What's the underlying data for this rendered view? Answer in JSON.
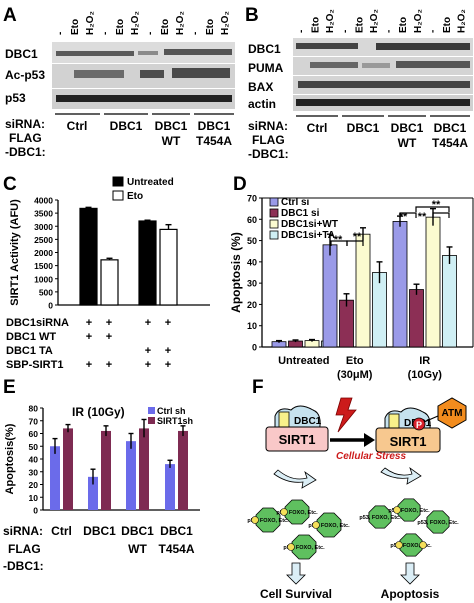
{
  "panels": {
    "A": {
      "letter": "A",
      "lane_marks": [
        "-",
        "Eto",
        "H₂O₂",
        "-",
        "Eto",
        "H₂O₂",
        "-",
        "Eto",
        "H₂O₂",
        "-",
        "Eto",
        "H₂O₂"
      ],
      "bands": [
        "DBC1",
        "Ac-p53",
        "p53"
      ],
      "row_labels": [
        "siRNA:",
        "FLAG",
        "-DBC1:"
      ],
      "groups": [
        {
          "line1": "Ctrl",
          "line2": ""
        },
        {
          "line1": "DBC1",
          "line2": ""
        },
        {
          "line1": "DBC1",
          "line2": "WT"
        },
        {
          "line1": "DBC1",
          "line2": "T454A"
        }
      ]
    },
    "B": {
      "letter": "B",
      "lane_marks": [
        "-",
        "Eto",
        "H₂O₂",
        "-",
        "Eto",
        "H₂O₂",
        "-",
        "Eto",
        "H₂O₂",
        "-",
        "Eto",
        "H₂O₂"
      ],
      "bands": [
        "DBC1",
        "PUMA",
        "BAX",
        "actin"
      ],
      "row_labels": [
        "siRNA:",
        "FLAG",
        "-DBC1:"
      ],
      "groups": [
        {
          "line1": "Ctrl",
          "line2": ""
        },
        {
          "line1": "DBC1",
          "line2": ""
        },
        {
          "line1": "DBC1",
          "line2": "WT"
        },
        {
          "line1": "DBC1",
          "line2": "T454A"
        }
      ]
    },
    "C": {
      "letter": "C"
    },
    "D": {
      "letter": "D"
    },
    "E": {
      "letter": "E"
    },
    "F": {
      "letter": "F",
      "sirt1": "SIRT1",
      "dbc1": "DBC1",
      "atm": "ATM",
      "p": "P",
      "stress": "Cellular Stress",
      "p53_label": "p53, FOXO, Etc.",
      "outcome_left": "Cell Survival",
      "outcome_right": "Apoptosis",
      "colors": {
        "sirt1_left": "#f9c8c8",
        "sirt1_right": "#f7c88f",
        "dbc1": "#c6e2ee",
        "atm": "#f28c1e",
        "p": "#d6202a",
        "hex": "#5fc05f",
        "arrow": "#dbeef6",
        "stress": "#cc1b1b"
      }
    }
  },
  "chart_data": [
    {
      "panel": "C",
      "type": "bar",
      "ylabel": "SIRT1 Activity (AFU)",
      "ylim": [
        0,
        4000
      ],
      "yticks": [
        "0",
        "500",
        "1000",
        "1500",
        "2000",
        "2500",
        "3000",
        "3500",
        "4000"
      ],
      "legend": [
        "Untreated",
        "Eto"
      ],
      "series": [
        {
          "name": "Untreated",
          "color": "#000000",
          "values": [
            3680,
            3200
          ],
          "errors": [
            40,
            30
          ]
        },
        {
          "name": "Eto",
          "color": "#ffffff",
          "values": [
            1720,
            2880
          ],
          "errors": [
            60,
            180
          ]
        }
      ],
      "conditions": [
        {
          "label": "DBC1siRNA",
          "signs": [
            "+",
            "+",
            "+",
            "+"
          ]
        },
        {
          "label": "DBC1 WT",
          "signs": [
            "+",
            "+",
            "",
            ""
          ]
        },
        {
          "label": "DBC1 TA",
          "signs": [
            "",
            "",
            "+",
            "+"
          ]
        },
        {
          "label": "SBP-SIRT1",
          "signs": [
            "+",
            "+",
            "+",
            "+"
          ]
        }
      ]
    },
    {
      "panel": "D",
      "type": "bar",
      "ylabel": "Apoptosis (%)",
      "ylim": [
        0,
        70
      ],
      "yticks": [
        "0",
        "10",
        "20",
        "30",
        "40",
        "50",
        "60",
        "70"
      ],
      "categories": [
        {
          "line1": "Untreated",
          "line2": ""
        },
        {
          "line1": "Eto",
          "line2": "(30μM)"
        },
        {
          "line1": "IR",
          "line2": "(10Gy)"
        }
      ],
      "series": [
        {
          "name": "Ctrl si",
          "color": "#9a9ae8",
          "values": [
            2.5,
            48,
            59
          ],
          "errors": [
            0.5,
            5,
            2.5
          ]
        },
        {
          "name": "DBC1 si",
          "color": "#8c2f55",
          "values": [
            2.8,
            22,
            27
          ],
          "errors": [
            0.5,
            3,
            2.5
          ]
        },
        {
          "name": "DBC1si+WT",
          "color": "#fbfbd0",
          "values": [
            3,
            53,
            61
          ],
          "errors": [
            0.5,
            3,
            4
          ]
        },
        {
          "name": "DBC1si+TA",
          "color": "#cfeff4",
          "values": [
            2.8,
            35,
            43
          ],
          "errors": [
            0.5,
            5,
            4
          ]
        }
      ],
      "annotations": [
        "**",
        "**",
        "**",
        "**",
        "**"
      ]
    },
    {
      "panel": "E",
      "type": "bar",
      "title": "IR (10Gy)",
      "ylabel": "Apoptosis(%)",
      "ylim": [
        0,
        80
      ],
      "yticks": [
        "0",
        "10",
        "20",
        "30",
        "40",
        "50",
        "60",
        "70",
        "80"
      ],
      "series": [
        {
          "name": "Ctrl sh",
          "color": "#6b6bea",
          "values": [
            50,
            26,
            54,
            36
          ],
          "errors": [
            6,
            6,
            6,
            3
          ]
        },
        {
          "name": "SIRT1sh",
          "color": "#7e2b52",
          "values": [
            64,
            62,
            64,
            62
          ],
          "errors": [
            3,
            4,
            7,
            4
          ]
        }
      ],
      "row_labels": [
        "siRNA:",
        "FLAG",
        "-DBC1:"
      ],
      "categories": [
        {
          "line1": "Ctrl",
          "line2": ""
        },
        {
          "line1": "DBC1",
          "line2": ""
        },
        {
          "line1": "DBC1",
          "line2": "WT"
        },
        {
          "line1": "DBC1",
          "line2": "T454A"
        }
      ]
    }
  ]
}
